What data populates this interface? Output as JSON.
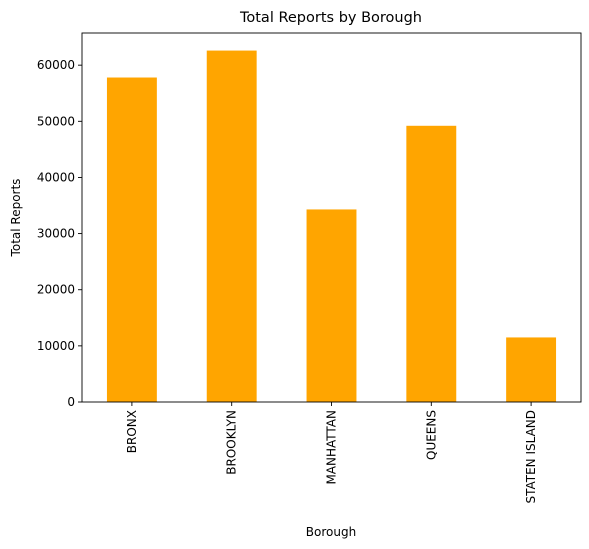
{
  "chart_data": {
    "type": "bar",
    "title": "Total Reports by Borough",
    "xlabel": "Borough",
    "ylabel": "Total Reports",
    "categories": [
      "BRONX",
      "BROOKLYN",
      "MANHATTAN",
      "QUEENS",
      "STATEN ISLAND"
    ],
    "values": [
      57800,
      62600,
      34300,
      49200,
      11500
    ],
    "ylim": [
      0,
      65730
    ],
    "yticks": [
      0,
      10000,
      20000,
      30000,
      40000,
      50000,
      60000
    ],
    "bar_color": "#ffa500",
    "grid": false,
    "legend": "none"
  }
}
